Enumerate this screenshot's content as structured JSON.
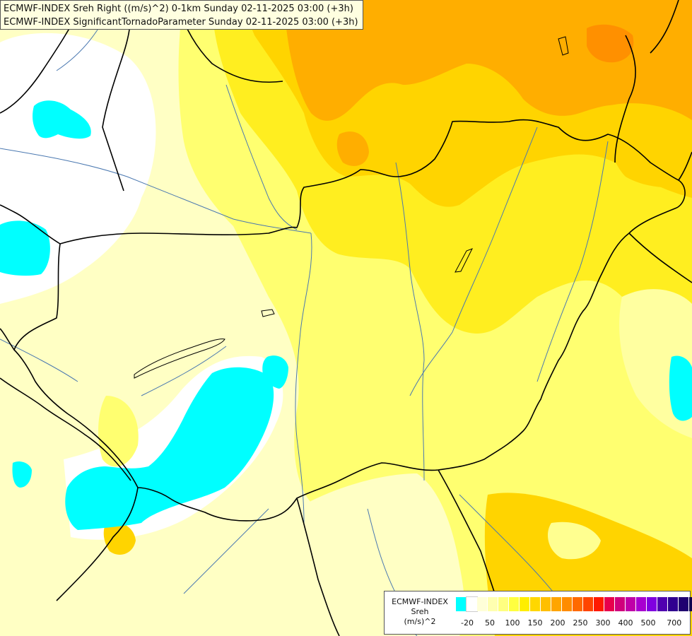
{
  "header": {
    "line1": "ECMWF-INDEX Sreh Right ((m/s)^2) 0-1km Sunday 02-11-2025 03:00 (+3h)",
    "line2": "ECMWF-INDEX SignificantTornadoParameter Sunday 02-11-2025 03:00 (+3h)"
  },
  "legend": {
    "line1": "ECMWF-INDEX",
    "line2": "Sreh",
    "line3": "(m/s)^2",
    "colors": [
      "#00ffff",
      "#ffffff",
      "#ffffd8",
      "#ffffb0",
      "#ffff80",
      "#ffff40",
      "#ffee00",
      "#ffd700",
      "#ffbf00",
      "#ffa500",
      "#ff8c00",
      "#ff6a00",
      "#ff4500",
      "#ff1a00",
      "#e8004c",
      "#d0007c",
      "#c000a8",
      "#a800d0",
      "#8000e0",
      "#5000b0",
      "#300090",
      "#200070",
      "#100050"
    ],
    "ticks": [
      "-20",
      "50",
      "100",
      "150",
      "200",
      "250",
      "300",
      "400",
      "500",
      "700"
    ]
  },
  "map_colors": {
    "cyan": "#00ffff",
    "white": "#ffffff",
    "pale_yellow": "#ffffc4",
    "yellow": "#ffff70",
    "bright_yellow": "#ffee20",
    "gold": "#ffd400",
    "orange": "#ffae00",
    "dark_orange": "#ff9000",
    "border": "#000000",
    "river": "#4a78b0"
  }
}
